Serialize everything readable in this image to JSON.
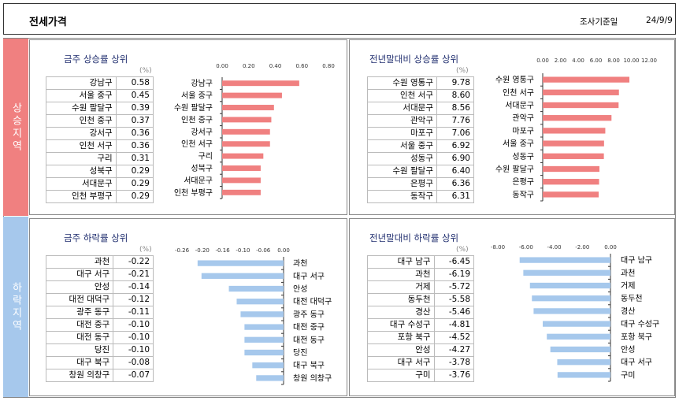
{
  "header": {
    "title": "전세가격",
    "date_label": "조사기준일",
    "date": "24/9/9"
  },
  "bands": {
    "up": "상승지역",
    "down": "하락지역"
  },
  "unit": "(%)",
  "chart_data": [
    {
      "type": "bar",
      "title": "금주 상승률 상위",
      "categories": [
        "강남구",
        "서울 중구",
        "수원 팔달구",
        "인천 중구",
        "강서구",
        "인천 서구",
        "구리",
        "성북구",
        "서대문구",
        "인천 부평구"
      ],
      "values": [
        0.58,
        0.45,
        0.39,
        0.37,
        0.36,
        0.36,
        0.31,
        0.29,
        0.29,
        0.29
      ],
      "value_labels": [
        "0.58",
        "0.45",
        "0.39",
        "0.37",
        "0.36",
        "0.36",
        "0.31",
        "0.29",
        "0.29",
        "0.29"
      ],
      "ticks": [
        "0.00",
        "0.20",
        "0.40",
        "0.60",
        "0.80"
      ],
      "xlim": [
        0,
        0.8
      ],
      "color": "#f08080"
    },
    {
      "type": "bar",
      "title": "전년말대비 상승률 상위",
      "categories": [
        "수원 영통구",
        "인천 서구",
        "서대문구",
        "관악구",
        "마포구",
        "서울 중구",
        "성동구",
        "수원 팔달구",
        "은평구",
        "동작구"
      ],
      "values": [
        9.78,
        8.6,
        8.56,
        7.76,
        7.06,
        6.92,
        6.9,
        6.4,
        6.36,
        6.31
      ],
      "value_labels": [
        "9.78",
        "8.60",
        "8.56",
        "7.76",
        "7.06",
        "6.92",
        "6.90",
        "6.40",
        "6.36",
        "6.31"
      ],
      "ticks": [
        "0.00",
        "2.00",
        "4.00",
        "6.00",
        "8.00",
        "10.00",
        "12.00"
      ],
      "xlim": [
        0,
        12
      ],
      "color": "#f08080"
    },
    {
      "type": "bar",
      "title": "금주 하락률 상위",
      "categories": [
        "과천",
        "대구 서구",
        "안성",
        "대전 대덕구",
        "광주 동구",
        "대전 중구",
        "대전 동구",
        "당진",
        "대구 북구",
        "창원 의창구"
      ],
      "values": [
        -0.22,
        -0.21,
        -0.14,
        -0.12,
        -0.11,
        -0.1,
        -0.1,
        -0.1,
        -0.08,
        -0.07
      ],
      "value_labels": [
        "-0.22",
        "-0.21",
        "-0.14",
        "-0.12",
        "-0.11",
        "-0.10",
        "-0.10",
        "-0.10",
        "-0.08",
        "-0.07"
      ],
      "ticks": [
        "-0.26",
        "-0.20",
        "-0.16",
        "-0.10",
        "-0.06",
        "0.00"
      ],
      "xlim": [
        -0.26,
        0
      ],
      "color": "#a6c8ec"
    },
    {
      "type": "bar",
      "title": "전년말대비 하락률 상위",
      "categories": [
        "대구 남구",
        "과천",
        "거제",
        "동두천",
        "경산",
        "대구 수성구",
        "포항 북구",
        "안성",
        "대구 서구",
        "구미"
      ],
      "values": [
        -6.45,
        -6.19,
        -5.72,
        -5.58,
        -5.46,
        -4.81,
        -4.52,
        -4.27,
        -3.78,
        -3.76
      ],
      "value_labels": [
        "-6.45",
        "-6.19",
        "-5.72",
        "-5.58",
        "-5.46",
        "-4.81",
        "-4.52",
        "-4.27",
        "-3.78",
        "-3.76"
      ],
      "ticks": [
        "-8.00",
        "-6.00",
        "-4.00",
        "-2.00",
        "0.00"
      ],
      "xlim": [
        -8,
        0
      ],
      "color": "#a6c8ec"
    }
  ]
}
